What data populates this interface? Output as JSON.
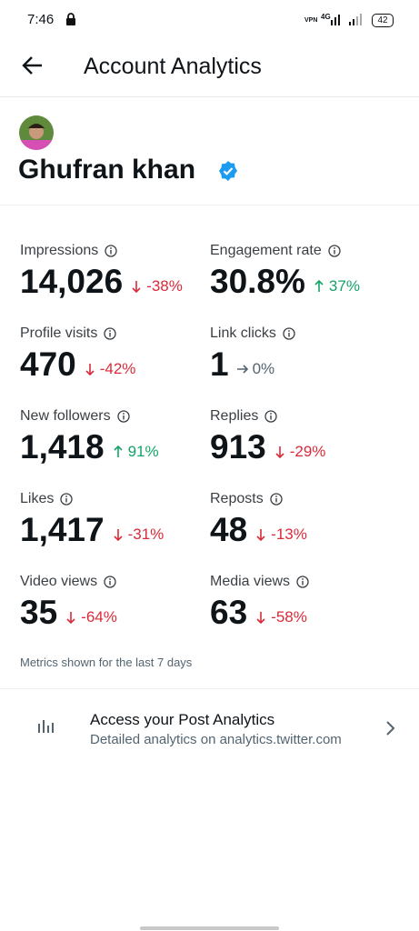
{
  "status_bar": {
    "time": "7:46",
    "vpn": "VPN",
    "network": "4G",
    "battery": "42"
  },
  "header": {
    "title": "Account Analytics"
  },
  "profile": {
    "name": "Ghufran khan"
  },
  "metrics": [
    {
      "label": "Impressions",
      "value": "14,026",
      "change": "-38%"
    },
    {
      "label": "Engagement rate",
      "value": "30.8%",
      "change": "37%"
    },
    {
      "label": "Profile visits",
      "value": "470",
      "change": "-42%"
    },
    {
      "label": "Link clicks",
      "value": "1",
      "change": "0%"
    },
    {
      "label": "New followers",
      "value": "1,418",
      "change": "91%"
    },
    {
      "label": "Replies",
      "value": "913",
      "change": "-29%"
    },
    {
      "label": "Likes",
      "value": "1,417",
      "change": "-31%"
    },
    {
      "label": "Reposts",
      "value": "48",
      "change": "-13%"
    },
    {
      "label": "Video views",
      "value": "35",
      "change": "-64%"
    },
    {
      "label": "Media views",
      "value": "63",
      "change": "-58%"
    }
  ],
  "note": "Metrics shown for the last 7 days",
  "link_card": {
    "title": "Access your Post Analytics",
    "subtitle": "Detailed analytics on analytics.twitter.com"
  }
}
